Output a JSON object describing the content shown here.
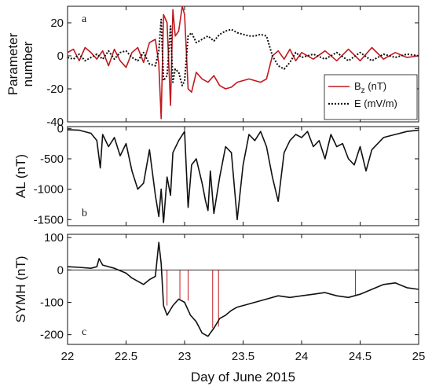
{
  "chart_data": {
    "type": "line",
    "xlabel": "Day of June 2015",
    "xlim": [
      22,
      25
    ],
    "xticks": [
      22,
      22.5,
      23,
      23.5,
      24,
      24.5,
      25
    ],
    "xtick_labels": [
      "22",
      "22.5",
      "23",
      "23.5",
      "24",
      "24.5",
      "25"
    ],
    "panels": [
      {
        "id": "a",
        "label": "a",
        "ylabel_lines": [
          "Parameter",
          "number"
        ],
        "ylim": [
          -40,
          30
        ],
        "yticks": [
          -40,
          -20,
          0,
          20
        ],
        "legend": {
          "placement": "bottom-right"
        },
        "series": [
          {
            "name": "B_z (nT)",
            "name_base": "B",
            "name_sub": "z",
            "name_rest": " (nT)",
            "color": "#c0191f",
            "style": "solid",
            "x": [
              22.0,
              22.05,
              22.1,
              22.15,
              22.2,
              22.25,
              22.3,
              22.35,
              22.4,
              22.45,
              22.5,
              22.55,
              22.6,
              22.65,
              22.7,
              22.75,
              22.78,
              22.8,
              22.82,
              22.85,
              22.88,
              22.9,
              22.92,
              22.95,
              22.98,
              23.0,
              23.03,
              23.06,
              23.1,
              23.15,
              23.2,
              23.25,
              23.3,
              23.35,
              23.4,
              23.45,
              23.5,
              23.55,
              23.6,
              23.65,
              23.7,
              23.75,
              23.8,
              23.85,
              23.9,
              23.95,
              24.0,
              24.1,
              24.2,
              24.3,
              24.4,
              24.5,
              24.6,
              24.7,
              24.8,
              24.9,
              25.0
            ],
            "values": [
              2,
              4,
              -3,
              5,
              2,
              -2,
              3,
              -6,
              4,
              -3,
              -7,
              2,
              5,
              -4,
              8,
              10,
              -5,
              -38,
              25,
              20,
              -30,
              28,
              12,
              15,
              30,
              25,
              -20,
              -22,
              -10,
              -14,
              -16,
              -12,
              -18,
              -20,
              -19,
              -16,
              -15,
              -14,
              -15,
              -16,
              -14,
              0,
              3,
              -2,
              4,
              -3,
              2,
              -2,
              3,
              -3,
              4,
              -3,
              5,
              -2,
              2,
              -1,
              0
            ]
          },
          {
            "name": "E (mV/m)",
            "name_base": "E",
            "name_sub": "",
            "name_rest": " (mV/m)",
            "color": "#111111",
            "style": "dotted",
            "x": [
              22.0,
              22.05,
              22.1,
              22.15,
              22.2,
              22.25,
              22.3,
              22.35,
              22.4,
              22.45,
              22.5,
              22.55,
              22.6,
              22.65,
              22.7,
              22.75,
              22.78,
              22.8,
              22.82,
              22.85,
              22.88,
              22.9,
              22.92,
              22.95,
              22.98,
              23.0,
              23.03,
              23.06,
              23.1,
              23.15,
              23.2,
              23.25,
              23.3,
              23.35,
              23.4,
              23.45,
              23.5,
              23.55,
              23.6,
              23.65,
              23.7,
              23.75,
              23.8,
              23.85,
              23.9,
              23.95,
              24.0,
              24.1,
              24.2,
              24.3,
              24.4,
              24.5,
              24.6,
              24.7,
              24.8,
              24.9,
              25.0
            ],
            "values": [
              -1,
              -2,
              1,
              -3,
              -1,
              1,
              -2,
              3,
              -2,
              2,
              3,
              -1,
              -3,
              2,
              -5,
              -6,
              3,
              22,
              -15,
              -12,
              18,
              -16,
              -8,
              -10,
              -18,
              -15,
              12,
              14,
              8,
              10,
              12,
              9,
              13,
              15,
              16,
              14,
              13,
              12,
              12,
              13,
              12,
              0,
              -6,
              -8,
              -4,
              2,
              -1,
              1,
              -2,
              2,
              -3,
              2,
              -3,
              1,
              -1,
              1,
              0
            ]
          }
        ]
      },
      {
        "id": "b",
        "label": "b",
        "ylabel": "AL (nT)",
        "ylim": [
          -1600,
          30
        ],
        "yticks": [
          -1500,
          -1000,
          -500,
          0
        ],
        "series": [
          {
            "name": "",
            "color": "#111111",
            "style": "solid",
            "x": [
              22.0,
              22.1,
              22.2,
              22.25,
              22.28,
              22.3,
              22.35,
              22.4,
              22.45,
              22.5,
              22.55,
              22.6,
              22.65,
              22.7,
              22.75,
              22.78,
              22.8,
              22.82,
              22.85,
              22.88,
              22.9,
              22.95,
              23.0,
              23.03,
              23.06,
              23.1,
              23.15,
              23.18,
              23.2,
              23.22,
              23.25,
              23.3,
              23.35,
              23.4,
              23.45,
              23.5,
              23.55,
              23.6,
              23.65,
              23.7,
              23.75,
              23.8,
              23.85,
              23.9,
              23.95,
              24.0,
              24.05,
              24.1,
              24.15,
              24.2,
              24.25,
              24.3,
              24.35,
              24.4,
              24.45,
              24.5,
              24.55,
              24.6,
              24.7,
              24.8,
              24.9,
              25.0
            ],
            "values": [
              -20,
              -30,
              -80,
              -200,
              -650,
              -100,
              -300,
              -150,
              -450,
              -250,
              -700,
              -1000,
              -900,
              -350,
              -1100,
              -1450,
              -1000,
              -1550,
              -800,
              -1100,
              -400,
              -200,
              -50,
              -1300,
              -600,
              -500,
              -900,
              -1200,
              -1350,
              -700,
              -1400,
              -800,
              -300,
              -400,
              -1500,
              -600,
              -100,
              -200,
              -50,
              -300,
              -800,
              -1200,
              -400,
              -200,
              -100,
              -150,
              -50,
              -300,
              -200,
              -500,
              -100,
              -300,
              -250,
              -500,
              -600,
              -300,
              -700,
              -350,
              -150,
              -100,
              -50,
              -30
            ]
          }
        ]
      },
      {
        "id": "c",
        "label": "c",
        "ylabel": "SYMH (nT)",
        "ylim": [
          -230,
          110
        ],
        "yticks": [
          -200,
          -100,
          0,
          100
        ],
        "zero_line": true,
        "series": [
          {
            "name": "",
            "color": "#111111",
            "style": "solid",
            "x": [
              22.0,
              22.1,
              22.2,
              22.25,
              22.27,
              22.3,
              22.4,
              22.5,
              22.55,
              22.6,
              22.65,
              22.7,
              22.75,
              22.78,
              22.8,
              22.82,
              22.85,
              22.9,
              22.95,
              23.0,
              23.05,
              23.1,
              23.15,
              23.2,
              23.25,
              23.3,
              23.35,
              23.4,
              23.45,
              23.5,
              23.6,
              23.7,
              23.8,
              23.9,
              24.0,
              24.1,
              24.2,
              24.3,
              24.4,
              24.5,
              24.6,
              24.7,
              24.8,
              24.9,
              25.0
            ],
            "values": [
              10,
              8,
              5,
              10,
              35,
              15,
              5,
              -10,
              -25,
              -35,
              -45,
              -30,
              -20,
              85,
              20,
              -110,
              -140,
              -110,
              -90,
              -100,
              -140,
              -160,
              -195,
              -205,
              -180,
              -150,
              -140,
              -125,
              -115,
              -110,
              -100,
              -90,
              -80,
              -85,
              -80,
              -75,
              -70,
              -80,
              -85,
              -75,
              -60,
              -45,
              -40,
              -55,
              -60
            ]
          }
        ],
        "markers": {
          "color": "#c0191f",
          "x": [
            22.85,
            22.96,
            23.03,
            23.24,
            23.29,
            24.46
          ],
          "y_top": 0,
          "y_bottom": [
            -110,
            -90,
            -95,
            -180,
            -175,
            -80
          ]
        }
      }
    ]
  }
}
